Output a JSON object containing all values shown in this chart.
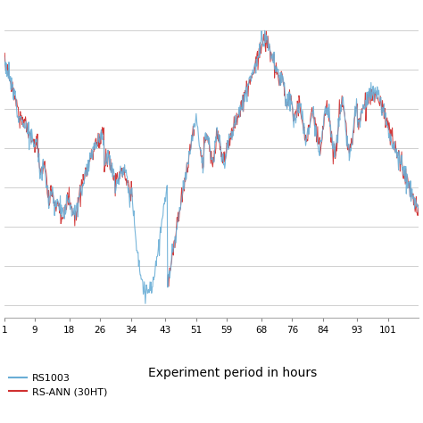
{
  "xticks": [
    1,
    9,
    18,
    26,
    34,
    43,
    51,
    59,
    68,
    76,
    84,
    93,
    101
  ],
  "xlabel": "Experiment period in hours",
  "legend_labels": [
    "RS1003",
    "RS-ANN (30HT)"
  ],
  "line_colors": [
    "#6aaed6",
    "#d03030"
  ],
  "background_color": "#ffffff",
  "grid_color": "#c8c8c8",
  "xmin": 1,
  "xmax": 109,
  "figsize": [
    4.74,
    4.74
  ],
  "dpi": 100
}
